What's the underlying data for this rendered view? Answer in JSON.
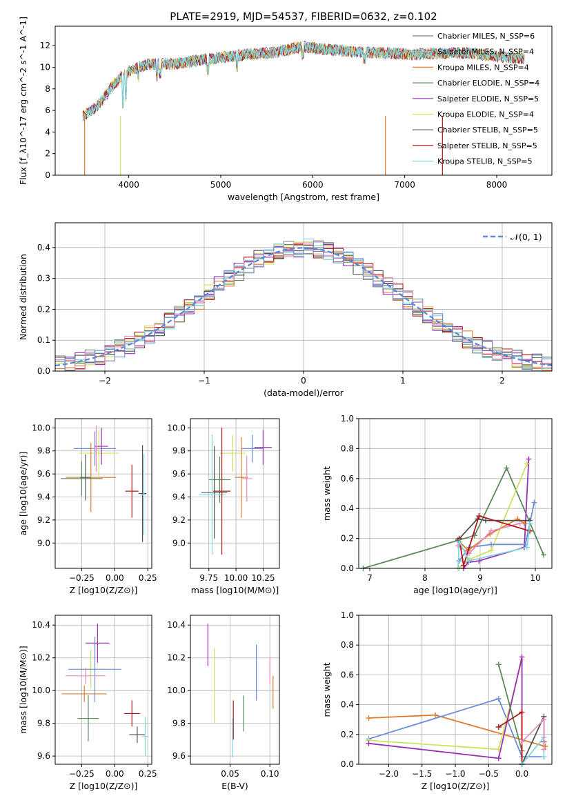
{
  "colors": {
    "chabrier_miles": "#808080",
    "salpeter_miles": "#b5b5b5",
    "kroupa_miles": "#e07b2a",
    "chabrier_elodie": "#5a8a5a",
    "salpeter_elodie": "#9b30b8",
    "kroupa_elodie": "#d0e060",
    "chabrier_stelib": "#505050",
    "salpeter_stelib": "#b01818",
    "kroupa_stelib": "#7fd6df",
    "blue": "#6a8fd8",
    "pink": "#e88ac0",
    "gauss": "#5b8bd4"
  },
  "chart_data": [
    {
      "id": "spectrum",
      "type": "line",
      "title": "PLATE=2919, MJD=54537, FIBERID=0632, z=0.102",
      "xlabel": "wavelength [Angstrom, rest frame]",
      "ylabel": "Flux [f_λ10^-17 erg cm^-2 s^-1 A^-1]",
      "xlim": [
        3200,
        8600
      ],
      "ylim": [
        0,
        13.8
      ],
      "xticks": [
        "4000",
        "5000",
        "6000",
        "7000",
        "8000"
      ],
      "yticks": [
        "0",
        "2",
        "4",
        "6",
        "8",
        "10",
        "12"
      ],
      "grid": false,
      "legend_position": "right",
      "legend": [
        {
          "label": "Chabrier MILES, N_SSP=6",
          "color": "#808080"
        },
        {
          "label": "Salpeter MILES, N_SSP=4",
          "color": "#b5b5b5"
        },
        {
          "label": "Kroupa MILES, N_SSP=4",
          "color": "#e07b2a"
        },
        {
          "label": "Chabrier ELODIE, N_SSP=4",
          "color": "#5a8a5a"
        },
        {
          "label": "Salpeter ELODIE, N_SSP=5",
          "color": "#9b30b8"
        },
        {
          "label": "Kroupa ELODIE, N_SSP=4",
          "color": "#d0e060"
        },
        {
          "label": "Chabrier STELIB, N_SSP=5",
          "color": "#505050"
        },
        {
          "label": "Salpeter STELIB, N_SSP=5",
          "color": "#b01818"
        },
        {
          "label": "Kroupa STELIB, N_SSP=5",
          "color": "#7fd6df"
        }
      ],
      "continuum": {
        "x": [
          3500,
          3600,
          3700,
          3800,
          3900,
          4000,
          4200,
          4500,
          4800,
          5000,
          5300,
          5600,
          5900,
          6200,
          6500,
          6800,
          7100,
          7400,
          7700,
          8000,
          8300
        ],
        "y": [
          5.5,
          6.0,
          6.8,
          8.0,
          9.0,
          9.6,
          10.3,
          10.3,
          10.7,
          10.9,
          11.2,
          11.4,
          11.9,
          11.6,
          11.4,
          11.3,
          11.2,
          11.3,
          11.3,
          11.0,
          10.8
        ]
      }
    },
    {
      "id": "residuals",
      "type": "histogram",
      "xlabel": "(data-model)/error",
      "ylabel": "Normed distribution",
      "xlim": [
        -2.5,
        2.5
      ],
      "ylim": [
        0,
        0.48
      ],
      "xticks": [
        "−2",
        "−1",
        "0",
        "1",
        "2"
      ],
      "yticks": [
        "0.0",
        "0.1",
        "0.2",
        "0.3",
        "0.4"
      ],
      "grid": true,
      "legend_position": "top-right",
      "legend": [
        {
          "label": "𝒩(0, 1)",
          "color": "#5b8bd4",
          "style": "dashed"
        }
      ],
      "bin_width": 0.1
    },
    {
      "id": "age-vs-Z",
      "type": "errorbar",
      "xlabel": "Z [log10(Z/Z⊙)]",
      "ylabel": "age [log10(age/yr)]",
      "xlim": [
        -0.45,
        0.28
      ],
      "ylim": [
        8.78,
        10.08
      ],
      "xticks": [
        "−0.25",
        "0.00",
        "0.25"
      ],
      "yticks": [
        "9.0",
        "9.2",
        "9.4",
        "9.6",
        "9.8",
        "10.0"
      ],
      "points": [
        {
          "x": -0.15,
          "y": 9.82,
          "xerr": 0.16,
          "yerr": 0.15,
          "color": "#6a8fd8"
        },
        {
          "x": -0.12,
          "y": 9.78,
          "xerr": 0.15,
          "yerr": 0.2,
          "color": "#d0e060"
        },
        {
          "x": -0.1,
          "y": 9.84,
          "xerr": 0.05,
          "yerr": 0.16,
          "color": "#9b30b8"
        },
        {
          "x": -0.14,
          "y": 9.82,
          "xerr": 0.03,
          "yerr": 0.2,
          "color": "#e88ac0"
        },
        {
          "x": -0.18,
          "y": 9.57,
          "xerr": 0.19,
          "yerr": 0.3,
          "color": "#e07b2a"
        },
        {
          "x": -0.25,
          "y": 9.56,
          "xerr": 0.16,
          "yerr": 0.15,
          "color": "#5a8a5a"
        },
        {
          "x": -0.22,
          "y": 9.57,
          "xerr": 0.04,
          "yerr": 0.2,
          "color": "#505050"
        },
        {
          "x": 0.13,
          "y": 9.45,
          "xerr": 0.05,
          "yerr": 0.23,
          "color": "#b01818"
        },
        {
          "x": 0.21,
          "y": 9.43,
          "xerr": 0.03,
          "yerr": 0.42,
          "color": "#505050"
        },
        {
          "x": 0.22,
          "y": 9.42,
          "xerr": 0.02,
          "yerr": 0.35,
          "color": "#7fd6df"
        }
      ]
    },
    {
      "id": "age-vs-mass",
      "type": "errorbar",
      "xlabel": "mass [log10(M/M⊙)]",
      "ylabel": "",
      "xlim": [
        9.58,
        10.4
      ],
      "ylim": [
        8.78,
        10.08
      ],
      "xticks": [
        "9.75",
        "10.00",
        "10.25"
      ],
      "yticks": [
        "9.0",
        "9.2",
        "9.4",
        "9.6",
        "9.8",
        "10.0"
      ],
      "points": [
        {
          "x": 10.15,
          "y": 9.82,
          "xerr": 0.1,
          "yerr": 0.12,
          "color": "#6a8fd8"
        },
        {
          "x": 10.25,
          "y": 9.83,
          "xerr": 0.08,
          "yerr": 0.15,
          "color": "#9b30b8"
        },
        {
          "x": 9.97,
          "y": 9.78,
          "xerr": 0.12,
          "yerr": 0.16,
          "color": "#d0e060"
        },
        {
          "x": 10.05,
          "y": 9.57,
          "xerr": 0.06,
          "yerr": 0.35,
          "color": "#e07b2a"
        },
        {
          "x": 10.1,
          "y": 9.56,
          "xerr": 0.05,
          "yerr": 0.2,
          "color": "#e88ac0"
        },
        {
          "x": 9.85,
          "y": 9.55,
          "xerr": 0.1,
          "yerr": 0.2,
          "color": "#5a8a5a"
        },
        {
          "x": 9.8,
          "y": 9.44,
          "xerr": 0.12,
          "yerr": 0.4,
          "color": "#505050"
        },
        {
          "x": 9.78,
          "y": 9.42,
          "xerr": 0.12,
          "yerr": 0.52,
          "color": "#7fd6df"
        },
        {
          "x": 9.87,
          "y": 9.45,
          "xerr": 0.08,
          "yerr": 0.55,
          "color": "#b01818"
        }
      ]
    },
    {
      "id": "weight-vs-age",
      "type": "line",
      "xlabel": "age [log10(age/yr)]",
      "ylabel": "mass weight",
      "xlim": [
        6.8,
        10.3
      ],
      "ylim": [
        0,
        1.0
      ],
      "xticks": [
        "7",
        "8",
        "9",
        "10"
      ],
      "yticks": [
        "0.0",
        "0.2",
        "0.4",
        "0.6",
        "0.8",
        "1.0"
      ],
      "grid": true,
      "series": [
        {
          "color": "#5a8a5a",
          "x": [
            6.88,
            8.9,
            9.48,
            10.15
          ],
          "y": [
            0.0,
            0.22,
            0.67,
            0.09
          ]
        },
        {
          "color": "#9b30b8",
          "x": [
            8.7,
            8.78,
            8.98,
            9.8,
            9.88
          ],
          "y": [
            0.0,
            0.04,
            0.05,
            0.14,
            0.73
          ]
        },
        {
          "color": "#d0e060",
          "x": [
            8.62,
            8.8,
            9.2,
            9.85
          ],
          "y": [
            0.0,
            0.06,
            0.12,
            0.7
          ]
        },
        {
          "color": "#6a8fd8",
          "x": [
            8.62,
            8.8,
            9.2,
            9.82,
            9.98
          ],
          "y": [
            0.05,
            0.14,
            0.16,
            0.16,
            0.44
          ]
        },
        {
          "color": "#e07b2a",
          "x": [
            8.62,
            8.78,
            9.18,
            9.68,
            9.8
          ],
          "y": [
            0.18,
            0.12,
            0.23,
            0.33,
            0.3
          ]
        },
        {
          "color": "#e88ac0",
          "x": [
            8.6,
            8.8,
            9.2,
            9.72
          ],
          "y": [
            0.15,
            0.1,
            0.25,
            0.3
          ]
        },
        {
          "color": "#505050",
          "x": [
            8.6,
            8.95,
            9.1,
            9.9
          ],
          "y": [
            0.19,
            0.33,
            0.32,
            0.32
          ]
        },
        {
          "color": "#b01818",
          "x": [
            8.62,
            8.7,
            8.98,
            9.9
          ],
          "y": [
            0.2,
            0.02,
            0.35,
            0.25
          ]
        },
        {
          "color": "#7fd6df",
          "x": [
            8.6,
            8.62,
            8.8,
            9.85,
            9.9
          ],
          "y": [
            0.0,
            0.18,
            0.05,
            0.14,
            0.3
          ]
        }
      ]
    },
    {
      "id": "mass-vs-Z",
      "type": "errorbar",
      "xlabel": "Z [log10(Z/Z⊙)]",
      "ylabel": "mass [log10(M/M⊙)]",
      "xlim": [
        -0.45,
        0.28
      ],
      "ylim": [
        9.55,
        10.46
      ],
      "xticks": [
        "−0.25",
        "0.00",
        "0.25"
      ],
      "yticks": [
        "9.6",
        "9.8",
        "10.0",
        "10.2",
        "10.4"
      ],
      "points": [
        {
          "x": -0.13,
          "y": 10.29,
          "xerr": 0.09,
          "yerr": 0.12,
          "color": "#9b30b8"
        },
        {
          "x": -0.18,
          "y": 10.13,
          "xerr": 0.12,
          "yerr": 0.12,
          "color": "#d0e060"
        },
        {
          "x": -0.15,
          "y": 10.13,
          "xerr": 0.2,
          "yerr": 0.2,
          "color": "#6a8fd8"
        },
        {
          "x": -0.22,
          "y": 10.09,
          "xerr": 0.15,
          "yerr": 0.05,
          "color": "#e88ac0"
        },
        {
          "x": -0.23,
          "y": 9.98,
          "xerr": 0.17,
          "yerr": 0.05,
          "color": "#e07b2a"
        },
        {
          "x": -0.2,
          "y": 9.83,
          "xerr": 0.08,
          "yerr": 0.14,
          "color": "#5a8a5a"
        },
        {
          "x": 0.13,
          "y": 9.86,
          "xerr": 0.06,
          "yerr": 0.08,
          "color": "#b01818"
        },
        {
          "x": 0.17,
          "y": 9.73,
          "xerr": 0.06,
          "yerr": 0.05,
          "color": "#505050"
        },
        {
          "x": 0.23,
          "y": 9.72,
          "xerr": 0.02,
          "yerr": 0.12,
          "color": "#7fd6df"
        }
      ]
    },
    {
      "id": "mass-vs-ebv",
      "type": "errorbar",
      "xlabel": "E(B-V)",
      "ylabel": "",
      "xlim": [
        0.0,
        0.112
      ],
      "ylim": [
        9.55,
        10.46
      ],
      "xticks": [
        "0.05",
        "0.10"
      ],
      "yticks": [
        "9.6",
        "9.8",
        "10.0",
        "10.2",
        "10.4"
      ],
      "points": [
        {
          "x": 0.022,
          "y": 10.28,
          "yerr": 0.13,
          "color": "#9b30b8"
        },
        {
          "x": 0.03,
          "y": 10.03,
          "yerr": 0.23,
          "color": "#d0e060"
        },
        {
          "x": 0.054,
          "y": 9.82,
          "yerr": 0.12,
          "color": "#b01818"
        },
        {
          "x": 0.053,
          "y": 9.71,
          "yerr": 0.12,
          "color": "#7fd6df"
        },
        {
          "x": 0.067,
          "y": 9.86,
          "yerr": 0.11,
          "color": "#5a8a5a"
        },
        {
          "x": 0.083,
          "y": 10.11,
          "yerr": 0.17,
          "color": "#6a8fd8"
        },
        {
          "x": 0.1,
          "y": 10.12,
          "yerr": 0.08,
          "color": "#e88ac0"
        },
        {
          "x": 0.104,
          "y": 9.99,
          "yerr": 0.1,
          "color": "#e07b2a"
        }
      ]
    },
    {
      "id": "weight-vs-Z",
      "type": "line",
      "xlabel": "Z [log10(Z/Z⊙)]",
      "ylabel": "mass weight",
      "xlim": [
        -2.45,
        0.45
      ],
      "ylim": [
        0,
        1.0
      ],
      "xticks": [
        "−2.0",
        "−1.5",
        "−1.0",
        "−0.5",
        "0.0"
      ],
      "yticks": [
        "0.0",
        "0.2",
        "0.4",
        "0.6",
        "0.8",
        "1.0"
      ],
      "grid": true,
      "series": [
        {
          "color": "#e07b2a",
          "x": [
            -2.3,
            -1.3,
            0.35
          ],
          "y": [
            0.31,
            0.33,
            0.12
          ]
        },
        {
          "color": "#6a8fd8",
          "x": [
            -2.3,
            -0.35,
            0.0,
            0.33
          ],
          "y": [
            0.17,
            0.44,
            0.05,
            0.05
          ]
        },
        {
          "color": "#d0e060",
          "x": [
            -2.3,
            -0.35,
            0.0,
            0.0
          ],
          "y": [
            0.16,
            0.1,
            0.7,
            0.0
          ]
        },
        {
          "color": "#9b30b8",
          "x": [
            -2.3,
            -0.35,
            0.0,
            0.0
          ],
          "y": [
            0.14,
            0.04,
            0.72,
            0.0
          ]
        },
        {
          "color": "#5a8a5a",
          "x": [
            -0.35,
            0.0,
            0.0
          ],
          "y": [
            0.67,
            0.09,
            0.0
          ]
        },
        {
          "color": "#b01818",
          "x": [
            -0.35,
            0.0,
            0.0
          ],
          "y": [
            0.25,
            0.35,
            0.0
          ]
        },
        {
          "color": "#505050",
          "x": [
            0.0,
            0.33,
            0.33
          ],
          "y": [
            0.0,
            0.32,
            0.15
          ]
        },
        {
          "color": "#7fd6df",
          "x": [
            0.0,
            0.33,
            0.33
          ],
          "y": [
            0.0,
            0.18,
            0.05
          ]
        },
        {
          "color": "#e88ac0",
          "x": [
            0.0,
            0.33,
            0.33
          ],
          "y": [
            0.15,
            0.3,
            0.1
          ]
        }
      ]
    }
  ]
}
